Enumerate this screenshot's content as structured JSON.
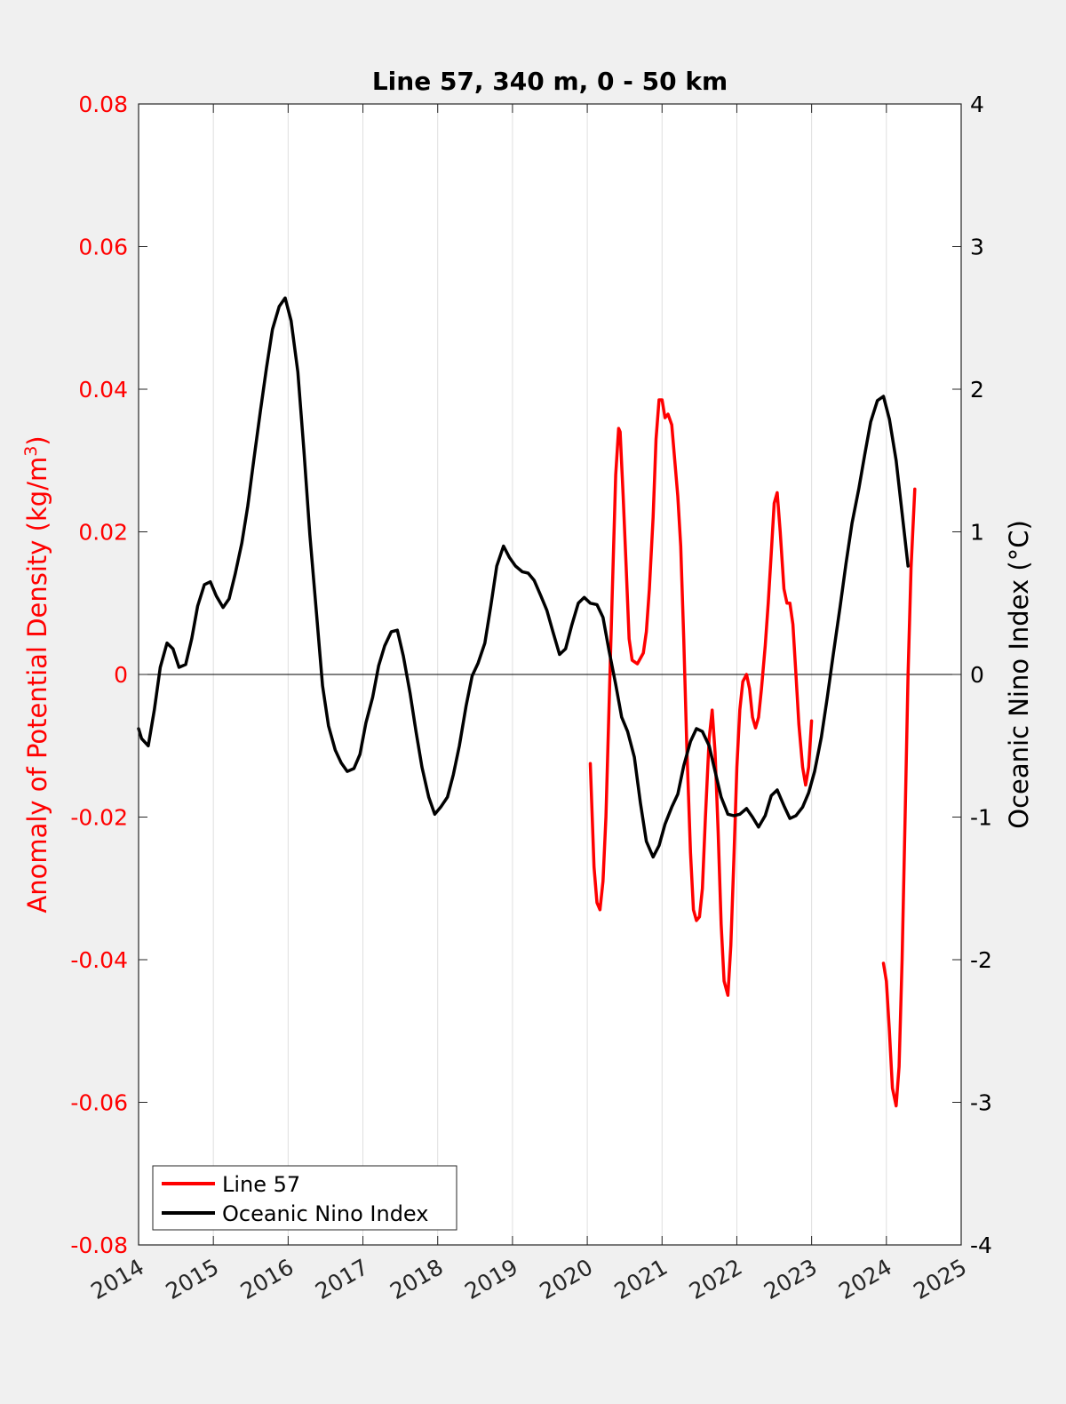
{
  "chart_data": {
    "type": "line",
    "title": "Line 57, 340 m, 0 - 50 km",
    "xlabel": "",
    "xlim": [
      2014,
      2025
    ],
    "xticks": [
      2014,
      2015,
      2016,
      2017,
      2018,
      2019,
      2020,
      2021,
      2022,
      2023,
      2024,
      2025
    ],
    "xtick_labels": [
      "2014",
      "2015",
      "2016",
      "2017",
      "2018",
      "2019",
      "2020",
      "2021",
      "2022",
      "2023",
      "2024",
      "2025"
    ],
    "y_left": {
      "label": "Anomaly of Potential Density (kg/m3)",
      "label_main": "Anomaly of Potential Density (kg/m",
      "label_sup": "3",
      "label_end": ")",
      "lim": [
        -0.08,
        0.08
      ],
      "ticks": [
        -0.08,
        -0.06,
        -0.04,
        -0.02,
        0,
        0.02,
        0.04,
        0.06,
        0.08
      ],
      "tick_labels": [
        "-0.08",
        "-0.06",
        "-0.04",
        "-0.02",
        "0",
        "0.02",
        "0.04",
        "0.06",
        "0.08"
      ],
      "color": "#ff0000"
    },
    "y_right": {
      "label": "Oceanic Nino Index (°C)",
      "lim": [
        -4,
        4
      ],
      "ticks": [
        -4,
        -3,
        -2,
        -1,
        0,
        1,
        2,
        3,
        4
      ],
      "tick_labels": [
        "-4",
        "-3",
        "-2",
        "-1",
        "0",
        "1",
        "2",
        "3",
        "4"
      ],
      "color": "#000000"
    },
    "grid": "vertical",
    "legend_position": "bottom-left",
    "series": [
      {
        "name": "Line 57",
        "axis": "left",
        "color": "#ff0000",
        "segments": [
          [
            [
              2020.04,
              -0.0125
            ],
            [
              2020.09,
              -0.027
            ],
            [
              2020.13,
              -0.032
            ],
            [
              2020.17,
              -0.033
            ],
            [
              2020.21,
              -0.029
            ],
            [
              2020.25,
              -0.02
            ],
            [
              2020.29,
              -0.005
            ],
            [
              2020.33,
              0.01
            ],
            [
              2020.38,
              0.028
            ],
            [
              2020.42,
              0.0345
            ],
            [
              2020.44,
              0.034
            ],
            [
              2020.48,
              0.025
            ],
            [
              2020.52,
              0.015
            ],
            [
              2020.56,
              0.005
            ],
            [
              2020.6,
              0.002
            ],
            [
              2020.67,
              0.0015
            ],
            [
              2020.75,
              0.003
            ],
            [
              2020.79,
              0.006
            ],
            [
              2020.83,
              0.012
            ],
            [
              2020.88,
              0.022
            ],
            [
              2020.92,
              0.033
            ],
            [
              2020.96,
              0.0385
            ],
            [
              2021.0,
              0.0385
            ],
            [
              2021.04,
              0.036
            ],
            [
              2021.08,
              0.0365
            ],
            [
              2021.13,
              0.035
            ],
            [
              2021.17,
              0.03
            ],
            [
              2021.21,
              0.025
            ],
            [
              2021.25,
              0.018
            ],
            [
              2021.29,
              0.005
            ],
            [
              2021.33,
              -0.01
            ],
            [
              2021.38,
              -0.025
            ],
            [
              2021.42,
              -0.033
            ],
            [
              2021.46,
              -0.0345
            ],
            [
              2021.5,
              -0.034
            ],
            [
              2021.54,
              -0.03
            ],
            [
              2021.58,
              -0.02
            ],
            [
              2021.63,
              -0.009
            ],
            [
              2021.67,
              -0.005
            ],
            [
              2021.71,
              -0.011
            ],
            [
              2021.75,
              -0.022
            ],
            [
              2021.79,
              -0.035
            ],
            [
              2021.83,
              -0.043
            ],
            [
              2021.88,
              -0.045
            ],
            [
              2021.92,
              -0.038
            ],
            [
              2021.96,
              -0.026
            ],
            [
              2022.0,
              -0.013
            ],
            [
              2022.04,
              -0.005
            ],
            [
              2022.08,
              -0.001
            ],
            [
              2022.13,
              0.0
            ],
            [
              2022.17,
              -0.002
            ],
            [
              2022.21,
              -0.006
            ],
            [
              2022.25,
              -0.0075
            ],
            [
              2022.29,
              -0.006
            ],
            [
              2022.33,
              -0.002
            ],
            [
              2022.38,
              0.004
            ],
            [
              2022.42,
              0.01
            ],
            [
              2022.46,
              0.017
            ],
            [
              2022.5,
              0.024
            ],
            [
              2022.54,
              0.0255
            ],
            [
              2022.58,
              0.02
            ],
            [
              2022.63,
              0.012
            ],
            [
              2022.67,
              0.01
            ],
            [
              2022.71,
              0.01
            ],
            [
              2022.75,
              0.007
            ],
            [
              2022.79,
              0.0
            ],
            [
              2022.83,
              -0.007
            ],
            [
              2022.88,
              -0.013
            ],
            [
              2022.92,
              -0.0155
            ],
            [
              2022.96,
              -0.013
            ],
            [
              2023.0,
              -0.0065
            ]
          ],
          [
            [
              2023.96,
              -0.0405
            ],
            [
              2024.0,
              -0.043
            ],
            [
              2024.04,
              -0.05
            ],
            [
              2024.08,
              -0.058
            ],
            [
              2024.13,
              -0.0605
            ],
            [
              2024.17,
              -0.055
            ],
            [
              2024.21,
              -0.04
            ],
            [
              2024.25,
              -0.02
            ],
            [
              2024.29,
              0.0
            ],
            [
              2024.33,
              0.015
            ],
            [
              2024.38,
              0.026
            ]
          ]
        ]
      },
      {
        "name": "Oceanic Nino Index",
        "axis": "right",
        "color": "#000000",
        "segments": [
          [
            [
              2014.0,
              -0.38
            ],
            [
              2014.04,
              -0.45
            ],
            [
              2014.13,
              -0.5
            ],
            [
              2014.21,
              -0.25
            ],
            [
              2014.29,
              0.05
            ],
            [
              2014.38,
              0.22
            ],
            [
              2014.46,
              0.18
            ],
            [
              2014.54,
              0.05
            ],
            [
              2014.63,
              0.07
            ],
            [
              2014.71,
              0.25
            ],
            [
              2014.79,
              0.48
            ],
            [
              2014.88,
              0.63
            ],
            [
              2014.96,
              0.65
            ],
            [
              2015.04,
              0.55
            ],
            [
              2015.13,
              0.47
            ],
            [
              2015.21,
              0.53
            ],
            [
              2015.29,
              0.7
            ],
            [
              2015.38,
              0.92
            ],
            [
              2015.46,
              1.18
            ],
            [
              2015.54,
              1.5
            ],
            [
              2015.63,
              1.85
            ],
            [
              2015.71,
              2.15
            ],
            [
              2015.79,
              2.42
            ],
            [
              2015.88,
              2.58
            ],
            [
              2015.96,
              2.64
            ],
            [
              2016.04,
              2.48
            ],
            [
              2016.13,
              2.12
            ],
            [
              2016.21,
              1.58
            ],
            [
              2016.29,
              0.98
            ],
            [
              2016.38,
              0.42
            ],
            [
              2016.46,
              -0.08
            ],
            [
              2016.54,
              -0.36
            ],
            [
              2016.63,
              -0.53
            ],
            [
              2016.71,
              -0.62
            ],
            [
              2016.79,
              -0.68
            ],
            [
              2016.88,
              -0.66
            ],
            [
              2016.96,
              -0.56
            ],
            [
              2017.04,
              -0.34
            ],
            [
              2017.13,
              -0.16
            ],
            [
              2017.21,
              0.06
            ],
            [
              2017.29,
              0.2
            ],
            [
              2017.38,
              0.3
            ],
            [
              2017.46,
              0.31
            ],
            [
              2017.54,
              0.13
            ],
            [
              2017.63,
              -0.13
            ],
            [
              2017.71,
              -0.4
            ],
            [
              2017.79,
              -0.65
            ],
            [
              2017.88,
              -0.86
            ],
            [
              2017.96,
              -0.98
            ],
            [
              2018.04,
              -0.93
            ],
            [
              2018.13,
              -0.86
            ],
            [
              2018.21,
              -0.7
            ],
            [
              2018.29,
              -0.5
            ],
            [
              2018.38,
              -0.22
            ],
            [
              2018.46,
              -0.01
            ],
            [
              2018.54,
              0.08
            ],
            [
              2018.63,
              0.22
            ],
            [
              2018.71,
              0.48
            ],
            [
              2018.79,
              0.76
            ],
            [
              2018.88,
              0.9
            ],
            [
              2018.96,
              0.82
            ],
            [
              2019.04,
              0.76
            ],
            [
              2019.13,
              0.72
            ],
            [
              2019.21,
              0.71
            ],
            [
              2019.29,
              0.66
            ],
            [
              2019.38,
              0.55
            ],
            [
              2019.46,
              0.45
            ],
            [
              2019.54,
              0.3
            ],
            [
              2019.63,
              0.14
            ],
            [
              2019.71,
              0.18
            ],
            [
              2019.79,
              0.34
            ],
            [
              2019.88,
              0.5
            ],
            [
              2019.96,
              0.54
            ],
            [
              2020.04,
              0.5
            ],
            [
              2020.13,
              0.49
            ],
            [
              2020.21,
              0.4
            ],
            [
              2020.29,
              0.17
            ],
            [
              2020.38,
              -0.07
            ],
            [
              2020.46,
              -0.3
            ],
            [
              2020.54,
              -0.4
            ],
            [
              2020.63,
              -0.58
            ],
            [
              2020.71,
              -0.9
            ],
            [
              2020.79,
              -1.17
            ],
            [
              2020.88,
              -1.28
            ],
            [
              2020.96,
              -1.2
            ],
            [
              2021.04,
              -1.05
            ],
            [
              2021.13,
              -0.93
            ],
            [
              2021.21,
              -0.84
            ],
            [
              2021.29,
              -0.64
            ],
            [
              2021.38,
              -0.47
            ],
            [
              2021.46,
              -0.38
            ],
            [
              2021.54,
              -0.4
            ],
            [
              2021.63,
              -0.5
            ],
            [
              2021.71,
              -0.68
            ],
            [
              2021.79,
              -0.86
            ],
            [
              2021.88,
              -0.98
            ],
            [
              2021.96,
              -0.99
            ],
            [
              2022.04,
              -0.98
            ],
            [
              2022.13,
              -0.94
            ],
            [
              2022.21,
              -1.0
            ],
            [
              2022.29,
              -1.07
            ],
            [
              2022.38,
              -0.99
            ],
            [
              2022.46,
              -0.85
            ],
            [
              2022.54,
              -0.81
            ],
            [
              2022.63,
              -0.92
            ],
            [
              2022.71,
              -1.01
            ],
            [
              2022.79,
              -0.99
            ],
            [
              2022.88,
              -0.93
            ],
            [
              2022.96,
              -0.83
            ],
            [
              2023.04,
              -0.68
            ],
            [
              2023.13,
              -0.44
            ],
            [
              2023.21,
              -0.16
            ],
            [
              2023.29,
              0.14
            ],
            [
              2023.38,
              0.47
            ],
            [
              2023.46,
              0.78
            ],
            [
              2023.54,
              1.06
            ],
            [
              2023.63,
              1.3
            ],
            [
              2023.71,
              1.54
            ],
            [
              2023.79,
              1.77
            ],
            [
              2023.88,
              1.92
            ],
            [
              2023.96,
              1.95
            ],
            [
              2024.04,
              1.79
            ],
            [
              2024.13,
              1.5
            ],
            [
              2024.21,
              1.13
            ],
            [
              2024.29,
              0.76
            ]
          ]
        ]
      }
    ]
  }
}
